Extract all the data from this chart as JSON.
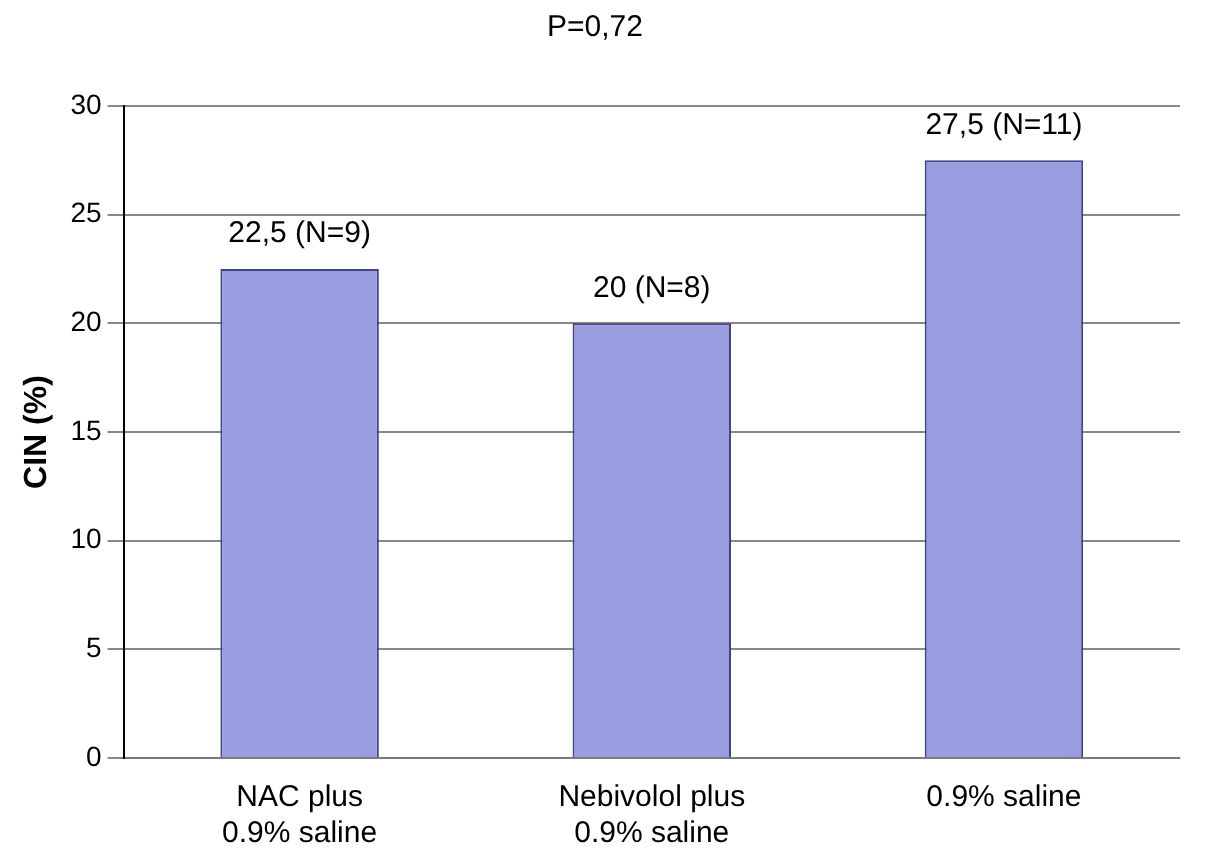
{
  "chart_data": {
    "type": "bar",
    "title": "P=0,72",
    "ylabel": "CIN (%)",
    "categories": [
      "NAC plus\n0.9% saline",
      "Nebivolol plus\n0.9% saline",
      "0.9% saline"
    ],
    "values": [
      22.5,
      20,
      27.5
    ],
    "color": "#9a9de0",
    "value_labels": [
      "22,5 (N=9)",
      "20 (N=8)",
      "27,5 (N=11)"
    ],
    "ylim": [
      0,
      30
    ],
    "yticks": [
      0,
      5,
      10,
      15,
      20,
      25,
      30
    ],
    "grid": "y"
  }
}
